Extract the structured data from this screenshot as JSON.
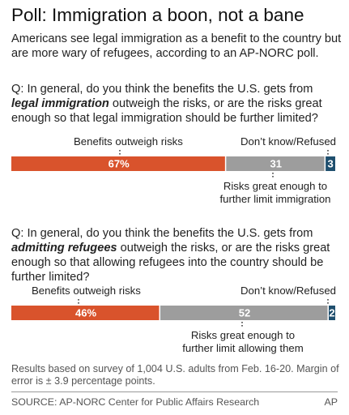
{
  "title": "Poll: Immigration a boon, not a bane",
  "subtitle": "Americans see legal immigration as a benefit to the country but are more wary of refugees, according to an AP-NORC poll.",
  "questions": [
    {
      "prefix": "Q: In general, do you think the benefits the U.S. gets from ",
      "emphasis": "legal immigration",
      "suffix": " outweigh the risks, or are the risks great enough so that legal immigration should be further limited?"
    },
    {
      "prefix": "Q: In general, do you think the benefits the U.S. gets from ",
      "emphasis": "admitting refugees",
      "suffix": " outweigh the risks, or are the risks great enough so that allowing refugees into the country should be further limited?"
    }
  ],
  "chart_data": [
    {
      "type": "bar",
      "stacked": true,
      "orientation": "horizontal",
      "categories": [
        "Legal immigration"
      ],
      "series": [
        {
          "name": "Benefits outweigh risks",
          "values": [
            67
          ],
          "label": "67%",
          "color": "#d9532c"
        },
        {
          "name": "Risks great enough to further limit immigration",
          "values": [
            31
          ],
          "label": "31",
          "color": "#9d9d9d"
        },
        {
          "name": "Don’t know/Refused",
          "values": [
            3
          ],
          "label": "3",
          "color": "#1f4f6e"
        }
      ]
    },
    {
      "type": "bar",
      "stacked": true,
      "orientation": "horizontal",
      "categories": [
        "Admitting refugees"
      ],
      "series": [
        {
          "name": "Benefits outweigh risks",
          "values": [
            46
          ],
          "label": "46%",
          "color": "#d9532c"
        },
        {
          "name": "Risks great enough to further limit allowing them",
          "values": [
            52
          ],
          "label": "52",
          "color": "#9d9d9d"
        },
        {
          "name": "Don’t know/Refused",
          "values": [
            2
          ],
          "label": "2",
          "color": "#1f4f6e"
        }
      ]
    }
  ],
  "labels": {
    "q1_benefits": "Benefits outweigh risks",
    "q1_dontknow": "Don’t know/Refused",
    "q1_risks_line1": "Risks great enough to",
    "q1_risks_line2": "further limit immigration",
    "q2_benefits": "Benefits outweigh risks",
    "q2_dontknow": "Don’t know/Refused",
    "q2_risks_line1": "Risks great enough to",
    "q2_risks_line2": "further limit allowing them"
  },
  "note": "Results based on survey of 1,004 U.S. adults from Feb. 16-20. Margin of error is ± 3.9 percentage points.",
  "source": "SOURCE: AP-NORC Center for Public Affairs Research",
  "credit": "AP"
}
